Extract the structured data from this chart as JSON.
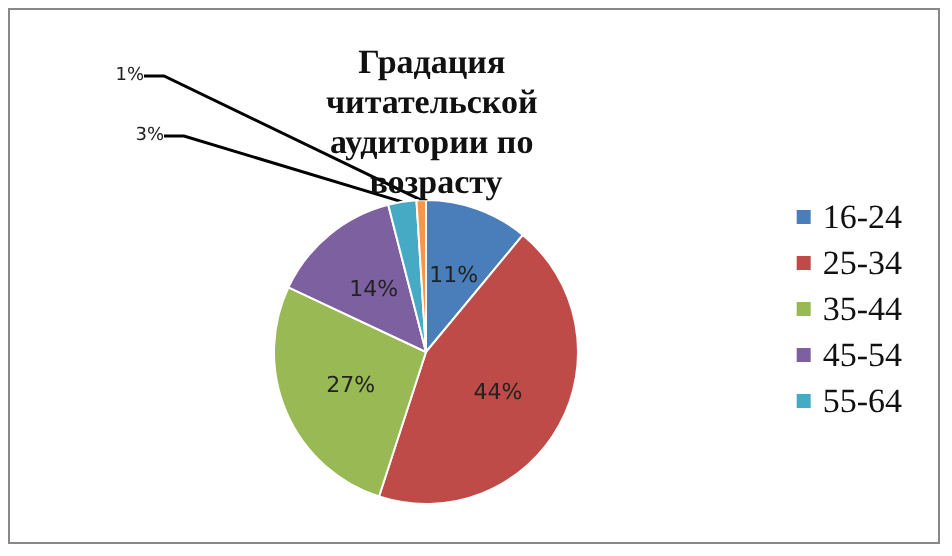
{
  "chart_data": {
    "type": "pie",
    "title": "Градация читательской аудитории по возрасту",
    "categories": [
      "16-24",
      "25-34",
      "35-44",
      "45-54",
      "55-64",
      null
    ],
    "values": [
      11,
      44,
      27,
      14,
      3,
      1
    ],
    "colors": [
      "#4a7ebb",
      "#be4b48",
      "#98b954",
      "#7d60a0",
      "#46aac5",
      "#f79646"
    ],
    "value_labels": [
      "11%",
      "44%",
      "27%",
      "14%",
      "3%",
      "1%"
    ],
    "legend": "right"
  }
}
